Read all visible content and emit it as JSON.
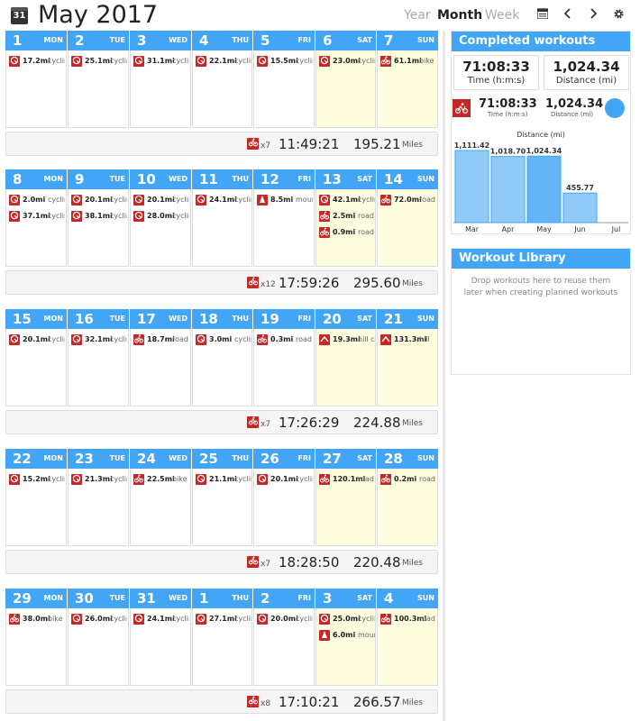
{
  "header": {
    "calendar_icon_day": "31",
    "title": "May 2017",
    "views": [
      "Year",
      "Month",
      "Week"
    ],
    "active_view": "Month",
    "icons": [
      "calendar-list-icon",
      "chevron-left-icon",
      "chevron-right-icon",
      "gear-icon"
    ]
  },
  "colors": {
    "header_blue": "#42a5f5",
    "workout_red": "#c62828",
    "weekend_bg": "#fffde0",
    "bar_blue": "#90caf9",
    "bar_selected": "#64b5f6"
  },
  "weeks": [
    {
      "days": [
        {
          "num": "1",
          "name": "MON",
          "workouts": [
            {
              "dist": "17.2mi",
              "type": "cycling",
              "icon": "cycling-icon"
            }
          ]
        },
        {
          "num": "2",
          "name": "TUE",
          "workouts": [
            {
              "dist": "25.1mi",
              "type": "cycling",
              "icon": "cycling-icon"
            }
          ]
        },
        {
          "num": "3",
          "name": "WED",
          "workouts": [
            {
              "dist": "31.1mi",
              "type": "cycling",
              "icon": "cycling-icon"
            }
          ]
        },
        {
          "num": "4",
          "name": "THU",
          "workouts": [
            {
              "dist": "22.1mi",
              "type": "cycling",
              "icon": "cycling-icon"
            }
          ]
        },
        {
          "num": "5",
          "name": "FRI",
          "workouts": [
            {
              "dist": "15.5mi",
              "type": "cycling",
              "icon": "cycling-icon"
            }
          ]
        },
        {
          "num": "6",
          "name": "SAT",
          "workouts": [
            {
              "dist": "23.0mi",
              "type": "cycling",
              "icon": "cycling-icon"
            }
          ]
        },
        {
          "num": "7",
          "name": "SUN",
          "workouts": [
            {
              "dist": "61.1mi",
              "type": "bike",
              "icon": "bike-icon"
            }
          ]
        }
      ],
      "summary": {
        "count": "x7",
        "time": "11:49:21",
        "dist": "195.21",
        "unit": "Miles"
      }
    },
    {
      "days": [
        {
          "num": "8",
          "name": "MON",
          "workouts": [
            {
              "dist": "2.0mi",
              "type": "cycling",
              "icon": "cycling-icon"
            },
            {
              "dist": "37.1mi",
              "type": "cycling",
              "icon": "cycling-icon"
            }
          ]
        },
        {
          "num": "9",
          "name": "TUE",
          "workouts": [
            {
              "dist": "20.1mi",
              "type": "cycling",
              "icon": "cycling-icon"
            },
            {
              "dist": "38.1mi",
              "type": "cycling",
              "icon": "cycling-icon"
            }
          ]
        },
        {
          "num": "10",
          "name": "WED",
          "workouts": [
            {
              "dist": "20.1mi",
              "type": "cycling",
              "icon": "cycling-icon"
            },
            {
              "dist": "28.0mi",
              "type": "cycling",
              "icon": "cycling-icon"
            }
          ]
        },
        {
          "num": "11",
          "name": "THU",
          "workouts": [
            {
              "dist": "24.1mi",
              "type": "cycling",
              "icon": "cycling-icon"
            }
          ]
        },
        {
          "num": "12",
          "name": "FRI",
          "workouts": [
            {
              "dist": "8.5mi",
              "type": "mountain",
              "icon": "mountain-bike-icon"
            }
          ]
        },
        {
          "num": "13",
          "name": "SAT",
          "workouts": [
            {
              "dist": "42.1mi",
              "type": "cycling",
              "icon": "cycling-icon"
            },
            {
              "dist": "2.5mi",
              "type": "road cycling",
              "icon": "road-bike-icon"
            },
            {
              "dist": "0.9mi",
              "type": "road cycling",
              "icon": "road-bike-icon"
            }
          ]
        },
        {
          "num": "14",
          "name": "SUN",
          "workouts": [
            {
              "dist": "72.0mi",
              "type": "road cycling",
              "icon": "road-bike-icon"
            }
          ]
        }
      ],
      "summary": {
        "count": "x12",
        "time": "17:59:26",
        "dist": "295.60",
        "unit": "Miles"
      }
    },
    {
      "days": [
        {
          "num": "15",
          "name": "MON",
          "workouts": [
            {
              "dist": "20.1mi",
              "type": "cycling",
              "icon": "cycling-icon"
            }
          ]
        },
        {
          "num": "16",
          "name": "TUE",
          "workouts": [
            {
              "dist": "32.1mi",
              "type": "cycling",
              "icon": "cycling-icon"
            }
          ]
        },
        {
          "num": "17",
          "name": "WED",
          "workouts": [
            {
              "dist": "18.7mi",
              "type": "road cycling",
              "icon": "road-bike-icon"
            }
          ]
        },
        {
          "num": "18",
          "name": "THU",
          "workouts": [
            {
              "dist": "3.0mi",
              "type": "cycling",
              "icon": "cycling-icon"
            }
          ]
        },
        {
          "num": "19",
          "name": "FRI",
          "workouts": [
            {
              "dist": "0.3mi",
              "type": "road cycling",
              "icon": "road-bike-icon"
            }
          ]
        },
        {
          "num": "20",
          "name": "SAT",
          "workouts": [
            {
              "dist": "19.3mi",
              "type": "hill climb",
              "icon": "hill-icon"
            }
          ]
        },
        {
          "num": "21",
          "name": "SUN",
          "workouts": [
            {
              "dist": "131.3mi",
              "type": "hill",
              "icon": "hill-icon"
            }
          ]
        }
      ],
      "summary": {
        "count": "x7",
        "time": "17:26:29",
        "dist": "224.88",
        "unit": "Miles"
      }
    },
    {
      "days": [
        {
          "num": "22",
          "name": "MON",
          "workouts": [
            {
              "dist": "15.2mi",
              "type": "cycling",
              "icon": "cycling-icon"
            }
          ]
        },
        {
          "num": "23",
          "name": "TUE",
          "workouts": [
            {
              "dist": "21.3mi",
              "type": "cycling",
              "icon": "cycling-icon"
            }
          ]
        },
        {
          "num": "24",
          "name": "WED",
          "workouts": [
            {
              "dist": "22.5mi",
              "type": "bike",
              "icon": "bike-icon"
            }
          ]
        },
        {
          "num": "25",
          "name": "THU",
          "workouts": [
            {
              "dist": "21.1mi",
              "type": "cycling",
              "icon": "cycling-icon"
            }
          ]
        },
        {
          "num": "26",
          "name": "FRI",
          "workouts": [
            {
              "dist": "20.1mi",
              "type": "cycling",
              "icon": "cycling-icon"
            }
          ]
        },
        {
          "num": "27",
          "name": "SAT",
          "workouts": [
            {
              "dist": "120.1mi",
              "type": "road cycling",
              "icon": "road-bike-icon"
            }
          ]
        },
        {
          "num": "28",
          "name": "SUN",
          "workouts": [
            {
              "dist": "0.2mi",
              "type": "road cycling",
              "icon": "road-bike-icon"
            }
          ]
        }
      ],
      "summary": {
        "count": "x7",
        "time": "18:28:50",
        "dist": "220.48",
        "unit": "Miles"
      }
    },
    {
      "days": [
        {
          "num": "29",
          "name": "MON",
          "workouts": [
            {
              "dist": "38.0mi",
              "type": "bike",
              "icon": "bike-icon"
            }
          ]
        },
        {
          "num": "30",
          "name": "TUE",
          "workouts": [
            {
              "dist": "26.0mi",
              "type": "cycling",
              "icon": "cycling-icon"
            }
          ]
        },
        {
          "num": "31",
          "name": "WED",
          "workouts": [
            {
              "dist": "24.1mi",
              "type": "cycling",
              "icon": "cycling-icon"
            }
          ]
        },
        {
          "num": "1",
          "name": "THU",
          "workouts": [
            {
              "dist": "27.1mi",
              "type": "cycling",
              "icon": "cycling-icon"
            }
          ]
        },
        {
          "num": "2",
          "name": "FRI",
          "workouts": [
            {
              "dist": "20.0mi",
              "type": "cycling",
              "icon": "cycling-icon"
            }
          ]
        },
        {
          "num": "3",
          "name": "SAT",
          "workouts": [
            {
              "dist": "25.0mi",
              "type": "cycling",
              "icon": "cycling-icon"
            },
            {
              "dist": "6.0mi",
              "type": "mountain",
              "icon": "mountain-bike-icon"
            }
          ]
        },
        {
          "num": "4",
          "name": "SUN",
          "workouts": [
            {
              "dist": "100.3mi",
              "type": "road cycling",
              "icon": "road-bike-icon"
            }
          ]
        }
      ],
      "summary": {
        "count": "x8",
        "time": "17:10:21",
        "dist": "266.57",
        "unit": "Miles"
      }
    }
  ],
  "completed": {
    "title": "Completed workouts",
    "time_value": "71:08:33",
    "time_label": "Time (h:m:s)",
    "dist_value": "1,024.34",
    "dist_label": "Distance (mi)",
    "overview_time": "71:08:33",
    "overview_time_label": "Time (h:m:s)",
    "overview_dist": "1,024.34",
    "overview_dist_label": "Distance (mi)"
  },
  "chart_data": {
    "type": "bar",
    "title": "Distance (mi)",
    "categories": [
      "Mar",
      "Apr",
      "May",
      "Jun",
      "Jul"
    ],
    "values": [
      1111.42,
      1018.7,
      1024.34,
      455.77,
      0
    ],
    "labels": [
      "1,111.42",
      "1,018.70",
      "1,024.34",
      "455.77",
      ""
    ],
    "selected": "May",
    "ylim": [
      0,
      1250
    ]
  },
  "library": {
    "title": "Workout Library",
    "hint": "Drop workouts here to reuse them later when creating planned workouts"
  }
}
